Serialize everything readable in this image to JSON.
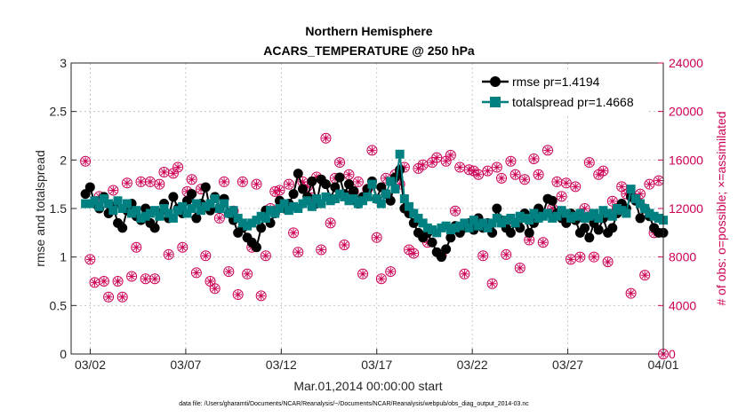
{
  "chart_data": {
    "type": "line",
    "title": "Northern Hemisphere",
    "subtitle": "ACARS_TEMPERATURE @ 250 hPa",
    "xlabel": "Mar.01,2014 00:00:00 start",
    "ylabel_left": "rmse and totalspread",
    "ylabel_right": "# of obs: o=possible; ×=assimilated",
    "footnote": "data file: /Users/gharamti/Documents/NCAR/Reanalysis/~/Documents/NCAR/Reanalysis/webpub/obs_diag_output_2014-03.nc",
    "xlim": [
      1,
      32
    ],
    "ylim_left": [
      0,
      3
    ],
    "ylim_right": [
      0,
      24000
    ],
    "x_ticks": [
      {
        "x": 2,
        "label": "03/02"
      },
      {
        "x": 7,
        "label": "03/07"
      },
      {
        "x": 12,
        "label": "03/12"
      },
      {
        "x": 17,
        "label": "03/17"
      },
      {
        "x": 22,
        "label": "03/22"
      },
      {
        "x": 27,
        "label": "03/27"
      },
      {
        "x": 32,
        "label": "04/01"
      }
    ],
    "y_left_ticks": [
      "0",
      "0.5",
      "1",
      "1.5",
      "2",
      "2.5",
      "3"
    ],
    "y_right_ticks": [
      "0",
      "4000",
      "8000",
      "12000",
      "16000",
      "20000",
      "24000"
    ],
    "legend_position": "top-right",
    "grid": true,
    "colors": {
      "rmse": "#000000",
      "totalspread": "#008080",
      "obs": "#cc0055"
    },
    "series": [
      {
        "name": "rmse pr=1.4194",
        "values": [
          1.65,
          1.72,
          1.55,
          1.5,
          1.62,
          1.45,
          1.52,
          1.35,
          1.3,
          1.48,
          1.55,
          1.42,
          1.38,
          1.5,
          1.35,
          1.3,
          1.45,
          1.55,
          1.4,
          1.62,
          1.5,
          1.45,
          1.58,
          1.65,
          1.4,
          1.55,
          1.72,
          1.48,
          1.62,
          1.5,
          1.6,
          1.45,
          1.38,
          1.25,
          1.3,
          1.2,
          1.15,
          1.1,
          1.3,
          1.48,
          1.35,
          1.45,
          1.58,
          1.5,
          1.55,
          1.65,
          1.86,
          1.7,
          1.62,
          1.78,
          1.55,
          1.8,
          1.75,
          1.6,
          1.72,
          1.82,
          1.65,
          1.75,
          1.68,
          1.55,
          1.62,
          1.7,
          1.78,
          1.6,
          1.72,
          1.65,
          1.58,
          1.82,
          1.9,
          1.5,
          1.45,
          1.35,
          1.25,
          1.2,
          1.25,
          1.15,
          1.05,
          1.0,
          1.08,
          1.2,
          1.32,
          1.25,
          1.3,
          1.35,
          1.28,
          1.4,
          1.3,
          1.35,
          1.25,
          1.5,
          1.38,
          1.3,
          1.25,
          1.35,
          1.3,
          1.45,
          1.25,
          1.35,
          1.5,
          1.45,
          1.6,
          1.58,
          1.45,
          1.4,
          1.35,
          1.45,
          1.38,
          1.25,
          1.3,
          1.2,
          1.35,
          1.28,
          1.4,
          1.25,
          1.3,
          1.45,
          1.55,
          1.5,
          1.62,
          1.58,
          1.4,
          1.5,
          1.42,
          1.3,
          1.25,
          1.25
        ]
      },
      {
        "name": "totalspread pr=1.4668",
        "values": [
          1.55,
          1.55,
          1.58,
          1.52,
          1.6,
          1.55,
          1.48,
          1.58,
          1.5,
          1.55,
          1.45,
          1.48,
          1.4,
          1.42,
          1.45,
          1.48,
          1.42,
          1.5,
          1.45,
          1.4,
          1.48,
          1.52,
          1.45,
          1.5,
          1.55,
          1.48,
          1.52,
          1.55,
          1.6,
          1.5,
          1.55,
          1.45,
          1.48,
          1.4,
          1.35,
          1.32,
          1.35,
          1.38,
          1.42,
          1.4,
          1.48,
          1.45,
          1.5,
          1.55,
          1.48,
          1.52,
          1.5,
          1.55,
          1.58,
          1.52,
          1.6,
          1.55,
          1.62,
          1.58,
          1.6,
          1.65,
          1.62,
          1.58,
          1.6,
          1.55,
          1.58,
          1.62,
          1.75,
          1.6,
          1.55,
          1.65,
          1.78,
          1.7,
          2.06,
          1.6,
          1.52,
          1.45,
          1.4,
          1.35,
          1.3,
          1.28,
          1.25,
          1.3,
          1.32,
          1.28,
          1.3,
          1.32,
          1.35,
          1.3,
          1.38,
          1.32,
          1.35,
          1.3,
          1.35,
          1.4,
          1.35,
          1.38,
          1.4,
          1.35,
          1.42,
          1.4,
          1.38,
          1.45,
          1.4,
          1.42,
          1.45,
          1.4,
          1.42,
          1.48,
          1.45,
          1.4,
          1.42,
          1.45,
          1.4,
          1.42,
          1.45,
          1.4,
          1.48,
          1.45,
          1.42,
          1.5,
          1.48,
          1.45,
          1.7,
          1.6,
          1.55,
          1.5,
          1.45,
          1.42,
          1.4,
          1.38
        ]
      },
      {
        "name": "possible",
        "values": [
          15900,
          7800,
          5900,
          13000,
          6000,
          4700,
          13500,
          6000,
          4700,
          14100,
          6400,
          8800,
          14200,
          6200,
          14200,
          6200,
          14000,
          15000,
          8200,
          14900,
          15400,
          8800,
          13400,
          14400,
          6700,
          13600,
          8100,
          6000,
          5400,
          11200,
          14200,
          6800,
          11800,
          4900,
          14200,
          6600,
          8800,
          14000,
          4800,
          8100,
          12000,
          13400,
          13500,
          12200,
          14000,
          10000,
          8400,
          14200,
          13800,
          12900,
          14600,
          8600,
          17800,
          10800,
          14500,
          15800,
          9000,
          14800,
          13400,
          14200,
          6600,
          13600,
          16800,
          9600,
          6200,
          14500,
          6800,
          14800,
          14000,
          15400,
          8600,
          8300,
          15300,
          15600,
          9200,
          15800,
          16200,
          8100,
          15900,
          16400,
          11800,
          15400,
          6600,
          15200,
          15100,
          14800,
          8100,
          15100,
          5800,
          15400,
          14500,
          8200,
          15900,
          14800,
          7100,
          14400,
          9400,
          16100,
          14800,
          9200,
          16800,
          12000,
          14200,
          13000,
          14100,
          7800,
          13800,
          8000,
          12000,
          15800,
          8000,
          14800,
          15100,
          7600,
          12600,
          12000,
          13800,
          13200,
          5000,
          12800,
          13200,
          6500,
          14000,
          10000,
          14300,
          0
        ]
      },
      {
        "name": "assimilated",
        "values": [
          15900,
          7800,
          5900,
          13000,
          6000,
          4700,
          13500,
          6000,
          4700,
          14100,
          6400,
          8800,
          14200,
          6200,
          14200,
          6200,
          14000,
          15000,
          8200,
          14900,
          15400,
          8800,
          13400,
          14400,
          6700,
          13600,
          8100,
          6000,
          5400,
          11200,
          14200,
          6800,
          11800,
          4900,
          14200,
          6600,
          8800,
          14000,
          4800,
          8100,
          12000,
          13400,
          13500,
          12200,
          14000,
          10000,
          8400,
          14200,
          13800,
          12900,
          14600,
          8600,
          17800,
          10800,
          14500,
          15800,
          9000,
          14800,
          13400,
          14200,
          6600,
          13600,
          16800,
          9600,
          6200,
          14500,
          6800,
          14800,
          14000,
          15400,
          8600,
          8300,
          15300,
          15600,
          9200,
          15800,
          16200,
          8100,
          15900,
          16400,
          11800,
          15400,
          6600,
          15200,
          15100,
          14800,
          8100,
          15100,
          5800,
          15400,
          14500,
          8200,
          15900,
          14800,
          7100,
          14400,
          9400,
          16100,
          14800,
          9200,
          16800,
          12000,
          14200,
          13000,
          14100,
          7800,
          13800,
          8000,
          12000,
          15800,
          8000,
          14800,
          15100,
          7600,
          12600,
          12000,
          13800,
          13200,
          5000,
          12800,
          13200,
          6500,
          14000,
          10000,
          14300,
          0
        ]
      }
    ]
  }
}
